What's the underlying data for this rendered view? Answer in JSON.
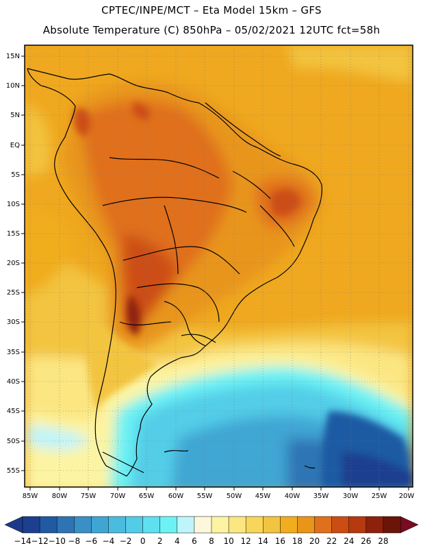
{
  "header": {
    "line1": "CPTEC/INPE/MCT –  Eta Model 15km – GFS",
    "line2": "Absolute Temperature (C) 850hPa – 05/02/2021 12UTC fct=58h"
  },
  "map": {
    "lat_labels": [
      "15N",
      "10N",
      "5N",
      "EQ",
      "5S",
      "10S",
      "15S",
      "20S",
      "25S",
      "30S",
      "35S",
      "40S",
      "45S",
      "50S",
      "55S"
    ],
    "lon_labels": [
      "85W",
      "80W",
      "75W",
      "70W",
      "65W",
      "60W",
      "55W",
      "50W",
      "45W",
      "40W",
      "35W",
      "30W",
      "25W",
      "20W"
    ]
  },
  "colorbar": {
    "labels": [
      "-14",
      "-12",
      "-10",
      "-8",
      "-6",
      "-4",
      "-2",
      "0",
      "2",
      "4",
      "6",
      "8",
      "10",
      "12",
      "14",
      "16",
      "18",
      "20",
      "22",
      "24",
      "26",
      "28"
    ],
    "colors": [
      "#1d3f8f",
      "#1f5aa3",
      "#2e74b5",
      "#3a8fc6",
      "#3fa6d4",
      "#4cbcde",
      "#52cde8",
      "#5fe0ef",
      "#6cf2f5",
      "#bff4fb",
      "#fdf7dc",
      "#fdf4a3",
      "#fbe682",
      "#f7d65a",
      "#f3c441",
      "#f0ad1d",
      "#e8951a",
      "#e0701b",
      "#cc4d13",
      "#b53a0f",
      "#8e210c",
      "#6a1508"
    ],
    "under_color": "#1d3a8a",
    "over_color": "#7a0b22"
  }
}
